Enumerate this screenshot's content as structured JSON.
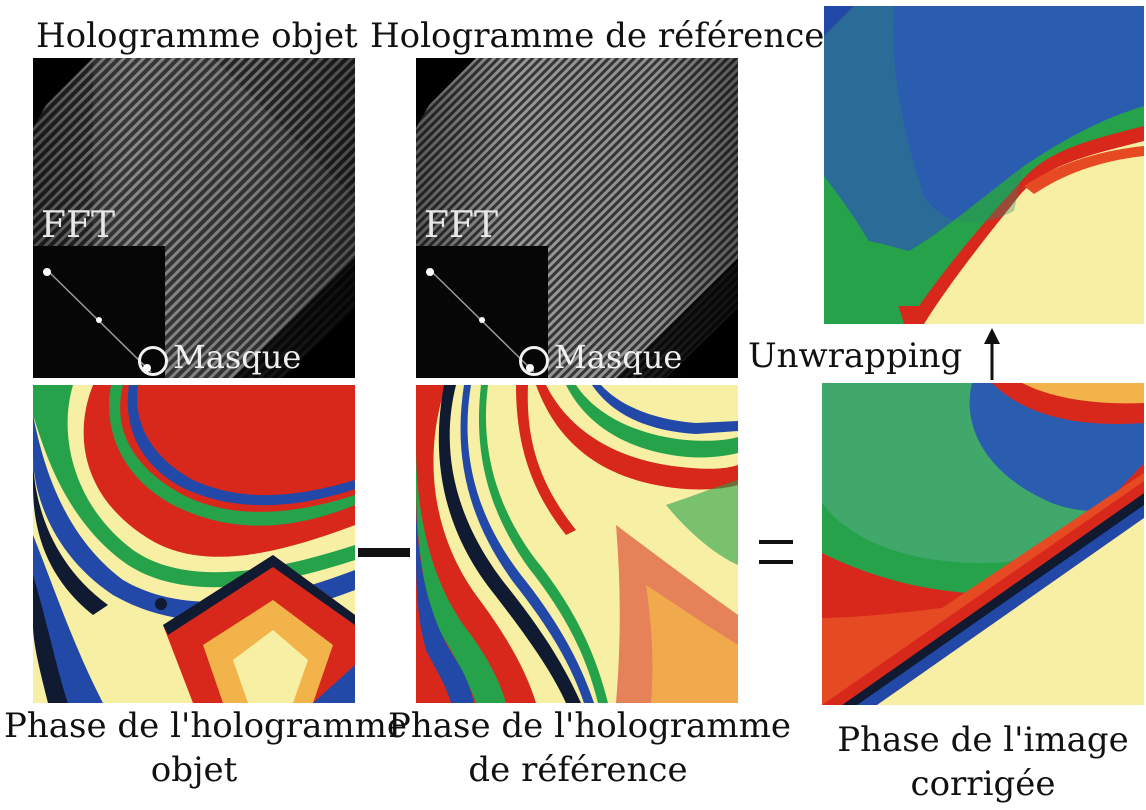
{
  "titles": {
    "object_hologram": "Hologramme objet",
    "reference_hologram": "Hologramme de référence"
  },
  "insets": {
    "fft_label": "FFT",
    "mask_label": "Masque"
  },
  "operators": {
    "unwrapping_label": "Unwrapping"
  },
  "captions": {
    "object_phase_line1": "Phase de l'hologramme",
    "object_phase_line2": "objet",
    "reference_phase_line1": "Phase de l'hologramme",
    "reference_phase_line2": "de référence",
    "corrected_phase_line1": "Phase de l'image",
    "corrected_phase_line2": "corrigée"
  },
  "colors": {
    "phase_yellow": "#f6efa4",
    "phase_red": "#d8281c",
    "phase_green": "#26a24a",
    "phase_blue": "#2248a8",
    "phase_dark": "#101a30"
  }
}
